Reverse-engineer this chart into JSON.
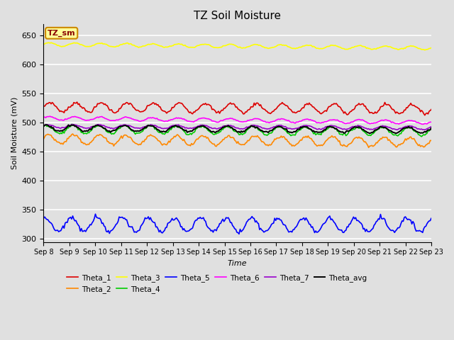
{
  "title": "TZ Soil Moisture",
  "ylabel": "Soil Moisture (mV)",
  "xlabel": "Time",
  "num_days": 16,
  "ylim": [
    295,
    670
  ],
  "yticks": [
    300,
    350,
    400,
    450,
    500,
    550,
    600,
    650
  ],
  "xtick_labels": [
    "Sep 8",
    "Sep 9",
    "Sep 10",
    "Sep 11",
    "Sep 12",
    "Sep 13",
    "Sep 14",
    "Sep 15",
    "Sep 16",
    "Sep 17",
    "Sep 18",
    "Sep 19",
    "Sep 20",
    "Sep 21",
    "Sep 22",
    "Sep 23"
  ],
  "bg_color": "#e0e0e0",
  "grid_color": "#ffffff",
  "annotation_text": "TZ_sm",
  "annotation_bg": "#ffff99",
  "annotation_border": "#cc8800",
  "series": [
    {
      "name": "Theta_1",
      "color": "#dd0000",
      "base": 527,
      "amp": 8,
      "freq": 1.0,
      "trend": -0.22,
      "phase": 0.0,
      "lw": 1.2
    },
    {
      "name": "Theta_2",
      "color": "#ff8800",
      "base": 472,
      "amp": 8,
      "freq": 1.0,
      "trend": -0.35,
      "phase": 0.5,
      "lw": 1.2
    },
    {
      "name": "Theta_3",
      "color": "#ffff00",
      "base": 635,
      "amp": 3,
      "freq": 1.0,
      "trend": -0.42,
      "phase": 0.2,
      "lw": 1.2
    },
    {
      "name": "Theta_4",
      "color": "#00cc00",
      "base": 489,
      "amp": 7,
      "freq": 1.0,
      "trend": -0.28,
      "phase": 0.8,
      "lw": 1.2
    },
    {
      "name": "Theta_5",
      "color": "#0000ff",
      "base": 325,
      "amp": 12,
      "freq": 1.0,
      "trend": -0.05,
      "phase": 1.2,
      "lw": 1.2
    },
    {
      "name": "Theta_6",
      "color": "#ff00ff",
      "base": 508,
      "amp": 3,
      "freq": 1.0,
      "trend": -0.48,
      "phase": 0.3,
      "lw": 1.2
    },
    {
      "name": "Theta_7",
      "color": "#9900cc",
      "base": 494,
      "amp": 3,
      "freq": 1.0,
      "trend": -0.18,
      "phase": 0.6,
      "lw": 1.2
    },
    {
      "name": "Theta_avg",
      "color": "#000000",
      "base": 491,
      "amp": 5,
      "freq": 1.0,
      "trend": -0.25,
      "phase": 0.9,
      "lw": 1.4
    }
  ]
}
